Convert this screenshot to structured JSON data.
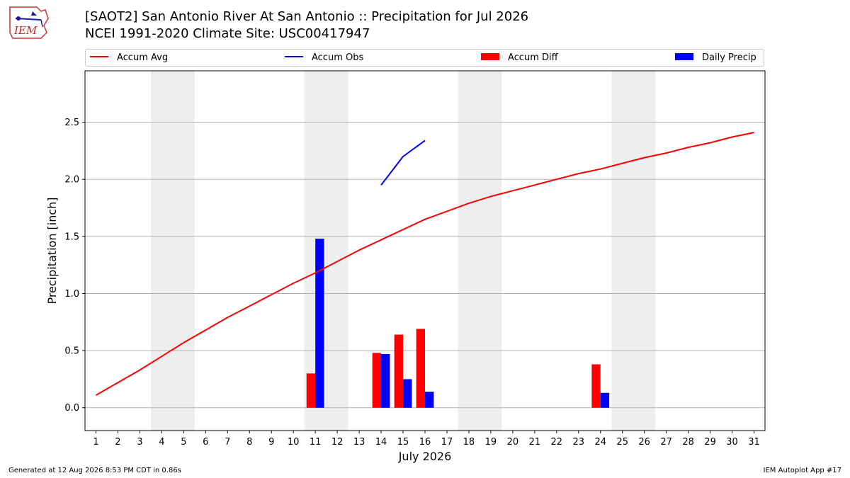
{
  "header": {
    "logo_text": "IEM",
    "title_line1": "[SAOT2] San Antonio River At San Antonio :: Precipitation for Jul 2026",
    "title_line2": "NCEI 1991-2020 Climate Site: USC00417947"
  },
  "footer": {
    "left": "Generated at 12 Aug 2026 8:53 PM CDT in 0.86s",
    "right": "IEM Autoplot App #17"
  },
  "colors": {
    "accum_avg": "#ff0000",
    "accum_obs": "#0000ff",
    "accum_diff": "#ff0000",
    "daily_precip": "#0000ff",
    "weekend_shade": "#eeeeee",
    "grid": "#b0b0b0"
  },
  "chart_data": {
    "type": "bar",
    "xlabel": "July 2026",
    "ylabel": "Precipitation [inch]",
    "xlim": [
      0.5,
      31.5
    ],
    "ylim": [
      -0.2,
      2.95
    ],
    "yticks": [
      0.0,
      0.5,
      1.0,
      1.5,
      2.0,
      2.5
    ],
    "ytick_labels": [
      "0.0",
      "0.5",
      "1.0",
      "1.5",
      "2.0",
      "2.5"
    ],
    "days": [
      1,
      2,
      3,
      4,
      5,
      6,
      7,
      8,
      9,
      10,
      11,
      12,
      13,
      14,
      15,
      16,
      17,
      18,
      19,
      20,
      21,
      22,
      23,
      24,
      25,
      26,
      27,
      28,
      29,
      30,
      31
    ],
    "grid": "horizontal",
    "legend_position": "top",
    "weekend_shading": [
      [
        4,
        5
      ],
      [
        11,
        12
      ],
      [
        18,
        19
      ],
      [
        25,
        26
      ]
    ],
    "series": [
      {
        "name": "Accum Avg",
        "kind": "line",
        "x": [
          1,
          2,
          3,
          4,
          5,
          6,
          7,
          8,
          9,
          10,
          11,
          12,
          13,
          14,
          15,
          16,
          17,
          18,
          19,
          20,
          21,
          22,
          23,
          24,
          25,
          26,
          27,
          28,
          29,
          30,
          31
        ],
        "values": [
          0.11,
          0.22,
          0.33,
          0.45,
          0.57,
          0.68,
          0.79,
          0.89,
          0.99,
          1.09,
          1.18,
          1.28,
          1.38,
          1.47,
          1.56,
          1.65,
          1.72,
          1.79,
          1.85,
          1.9,
          1.95,
          2.0,
          2.05,
          2.09,
          2.14,
          2.19,
          2.23,
          2.28,
          2.32,
          2.37,
          2.41
        ]
      },
      {
        "name": "Accum Obs",
        "kind": "line",
        "x": [
          14,
          15,
          16
        ],
        "values": [
          1.95,
          2.2,
          2.34
        ]
      },
      {
        "name": "Accum Diff",
        "kind": "bar",
        "x": [
          11,
          14,
          15,
          16,
          24
        ],
        "values": [
          0.3,
          0.48,
          0.64,
          0.69,
          0.38
        ]
      },
      {
        "name": "Daily Precip",
        "kind": "bar",
        "x": [
          11,
          14,
          15,
          16,
          24
        ],
        "values": [
          1.48,
          0.47,
          0.25,
          0.14,
          0.13
        ]
      }
    ]
  }
}
